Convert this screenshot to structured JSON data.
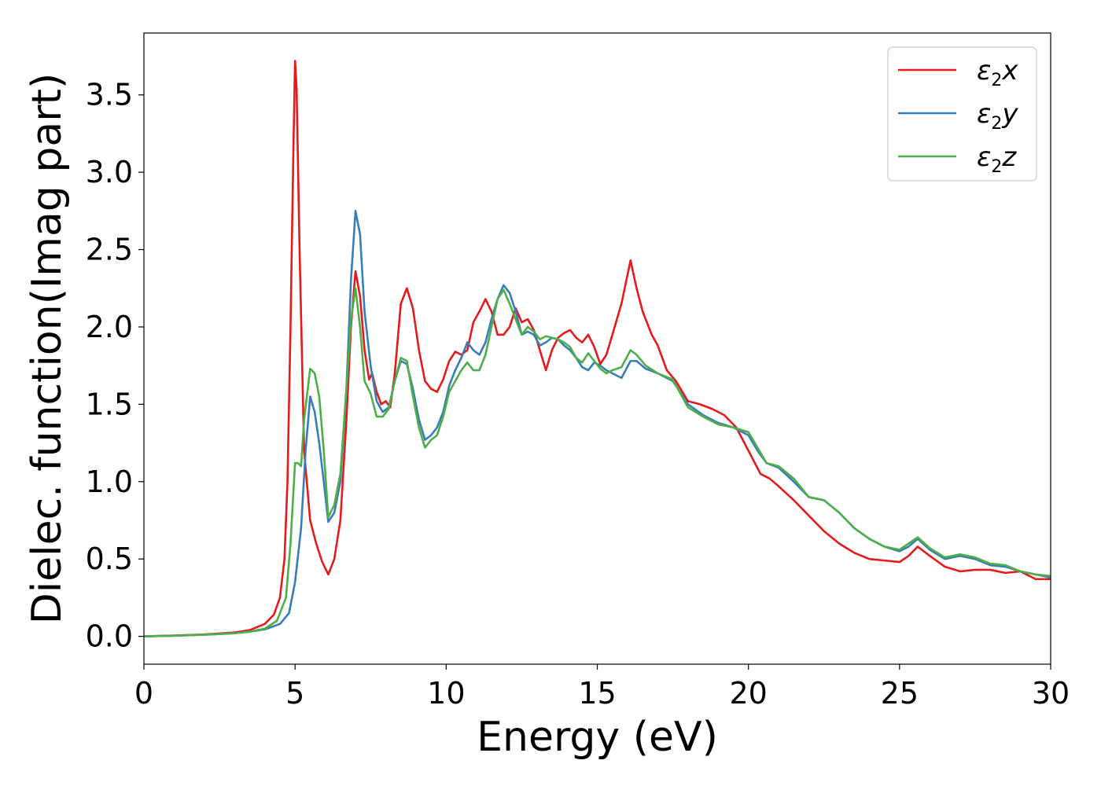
{
  "chart_data": {
    "type": "line",
    "xlabel": "Energy (eV)",
    "ylabel": "Dielec. function(Imag part)",
    "xlim": [
      0,
      30
    ],
    "ylim": [
      -0.18,
      3.9
    ],
    "xticks": [
      "0",
      "5",
      "10",
      "15",
      "20",
      "25",
      "30"
    ],
    "yticks": [
      "0.0",
      "0.5",
      "1.0",
      "1.5",
      "2.0",
      "2.5",
      "3.0",
      "3.5"
    ],
    "grid": false,
    "legend_position": "top-right",
    "series": [
      {
        "name": "ε2x",
        "legend_base": "ε",
        "legend_sub": "2",
        "legend_var": "x",
        "color": "#e41a1c",
        "points": [
          [
            0,
            0.0
          ],
          [
            1,
            0.005
          ],
          [
            2,
            0.012
          ],
          [
            3,
            0.025
          ],
          [
            3.5,
            0.04
          ],
          [
            4,
            0.08
          ],
          [
            4.3,
            0.14
          ],
          [
            4.5,
            0.25
          ],
          [
            4.65,
            0.5
          ],
          [
            4.75,
            1.0
          ],
          [
            4.85,
            2.0
          ],
          [
            4.95,
            3.2
          ],
          [
            5.0,
            3.72
          ],
          [
            5.05,
            3.55
          ],
          [
            5.15,
            2.5
          ],
          [
            5.3,
            1.2
          ],
          [
            5.5,
            0.75
          ],
          [
            5.7,
            0.6
          ],
          [
            5.9,
            0.48
          ],
          [
            6.1,
            0.4
          ],
          [
            6.3,
            0.5
          ],
          [
            6.5,
            0.75
          ],
          [
            6.7,
            1.4
          ],
          [
            6.85,
            2.0
          ],
          [
            7.0,
            2.36
          ],
          [
            7.15,
            2.2
          ],
          [
            7.3,
            1.85
          ],
          [
            7.45,
            1.66
          ],
          [
            7.55,
            1.7
          ],
          [
            7.7,
            1.58
          ],
          [
            7.85,
            1.5
          ],
          [
            8.0,
            1.52
          ],
          [
            8.15,
            1.48
          ],
          [
            8.3,
            1.7
          ],
          [
            8.5,
            2.15
          ],
          [
            8.7,
            2.25
          ],
          [
            8.9,
            2.12
          ],
          [
            9.1,
            1.85
          ],
          [
            9.3,
            1.65
          ],
          [
            9.5,
            1.6
          ],
          [
            9.7,
            1.58
          ],
          [
            9.9,
            1.66
          ],
          [
            10.1,
            1.78
          ],
          [
            10.3,
            1.84
          ],
          [
            10.5,
            1.82
          ],
          [
            10.7,
            1.85
          ],
          [
            10.9,
            2.03
          ],
          [
            11.1,
            2.1
          ],
          [
            11.3,
            2.18
          ],
          [
            11.5,
            2.1
          ],
          [
            11.7,
            1.95
          ],
          [
            11.9,
            1.95
          ],
          [
            12.1,
            2.0
          ],
          [
            12.3,
            2.12
          ],
          [
            12.5,
            2.03
          ],
          [
            12.7,
            2.05
          ],
          [
            12.9,
            1.98
          ],
          [
            13.1,
            1.85
          ],
          [
            13.3,
            1.72
          ],
          [
            13.5,
            1.85
          ],
          [
            13.7,
            1.93
          ],
          [
            13.9,
            1.96
          ],
          [
            14.1,
            1.98
          ],
          [
            14.3,
            1.93
          ],
          [
            14.5,
            1.9
          ],
          [
            14.7,
            1.95
          ],
          [
            14.9,
            1.87
          ],
          [
            15.1,
            1.76
          ],
          [
            15.3,
            1.82
          ],
          [
            15.5,
            1.95
          ],
          [
            15.8,
            2.15
          ],
          [
            16.1,
            2.43
          ],
          [
            16.3,
            2.25
          ],
          [
            16.5,
            2.1
          ],
          [
            16.8,
            1.95
          ],
          [
            17.0,
            1.88
          ],
          [
            17.3,
            1.72
          ],
          [
            17.6,
            1.65
          ],
          [
            18.0,
            1.52
          ],
          [
            18.4,
            1.5
          ],
          [
            18.8,
            1.47
          ],
          [
            19.2,
            1.43
          ],
          [
            19.6,
            1.35
          ],
          [
            20.0,
            1.2
          ],
          [
            20.4,
            1.05
          ],
          [
            20.7,
            1.02
          ],
          [
            21.0,
            0.97
          ],
          [
            21.5,
            0.88
          ],
          [
            22.0,
            0.78
          ],
          [
            22.5,
            0.68
          ],
          [
            23.0,
            0.6
          ],
          [
            23.5,
            0.54
          ],
          [
            24.0,
            0.5
          ],
          [
            24.5,
            0.49
          ],
          [
            25.0,
            0.48
          ],
          [
            25.3,
            0.52
          ],
          [
            25.6,
            0.58
          ],
          [
            26.0,
            0.52
          ],
          [
            26.5,
            0.45
          ],
          [
            27.0,
            0.42
          ],
          [
            27.5,
            0.43
          ],
          [
            28.0,
            0.43
          ],
          [
            28.5,
            0.41
          ],
          [
            29.0,
            0.42
          ],
          [
            29.5,
            0.37
          ],
          [
            30.0,
            0.37
          ]
        ]
      },
      {
        "name": "ε2y",
        "legend_base": "ε",
        "legend_sub": "2",
        "legend_var": "y",
        "color": "#377eb8",
        "points": [
          [
            0,
            0.0
          ],
          [
            1,
            0.004
          ],
          [
            2,
            0.01
          ],
          [
            3,
            0.02
          ],
          [
            3.5,
            0.03
          ],
          [
            4,
            0.045
          ],
          [
            4.5,
            0.08
          ],
          [
            4.8,
            0.15
          ],
          [
            5.0,
            0.35
          ],
          [
            5.2,
            0.7
          ],
          [
            5.35,
            1.2
          ],
          [
            5.5,
            1.55
          ],
          [
            5.65,
            1.45
          ],
          [
            5.8,
            1.25
          ],
          [
            5.95,
            1.0
          ],
          [
            6.1,
            0.74
          ],
          [
            6.3,
            0.8
          ],
          [
            6.5,
            1.0
          ],
          [
            6.7,
            1.6
          ],
          [
            6.85,
            2.3
          ],
          [
            7.0,
            2.75
          ],
          [
            7.15,
            2.6
          ],
          [
            7.3,
            2.1
          ],
          [
            7.5,
            1.75
          ],
          [
            7.7,
            1.52
          ],
          [
            7.9,
            1.45
          ],
          [
            8.1,
            1.48
          ],
          [
            8.3,
            1.65
          ],
          [
            8.5,
            1.78
          ],
          [
            8.7,
            1.76
          ],
          [
            8.9,
            1.6
          ],
          [
            9.1,
            1.4
          ],
          [
            9.3,
            1.27
          ],
          [
            9.5,
            1.3
          ],
          [
            9.7,
            1.35
          ],
          [
            9.9,
            1.45
          ],
          [
            10.1,
            1.62
          ],
          [
            10.3,
            1.72
          ],
          [
            10.5,
            1.8
          ],
          [
            10.7,
            1.9
          ],
          [
            10.9,
            1.85
          ],
          [
            11.1,
            1.82
          ],
          [
            11.3,
            1.9
          ],
          [
            11.5,
            2.05
          ],
          [
            11.7,
            2.18
          ],
          [
            11.9,
            2.27
          ],
          [
            12.1,
            2.22
          ],
          [
            12.3,
            2.1
          ],
          [
            12.5,
            1.95
          ],
          [
            12.7,
            1.97
          ],
          [
            12.9,
            1.95
          ],
          [
            13.1,
            1.88
          ],
          [
            13.3,
            1.9
          ],
          [
            13.5,
            1.93
          ],
          [
            13.7,
            1.92
          ],
          [
            13.9,
            1.88
          ],
          [
            14.1,
            1.85
          ],
          [
            14.3,
            1.8
          ],
          [
            14.5,
            1.74
          ],
          [
            14.7,
            1.72
          ],
          [
            14.9,
            1.77
          ],
          [
            15.1,
            1.75
          ],
          [
            15.3,
            1.72
          ],
          [
            15.5,
            1.7
          ],
          [
            15.8,
            1.67
          ],
          [
            16.1,
            1.78
          ],
          [
            16.3,
            1.78
          ],
          [
            16.6,
            1.73
          ],
          [
            17.0,
            1.7
          ],
          [
            17.5,
            1.65
          ],
          [
            18.0,
            1.5
          ],
          [
            18.5,
            1.43
          ],
          [
            19.0,
            1.38
          ],
          [
            19.5,
            1.35
          ],
          [
            20.0,
            1.3
          ],
          [
            20.3,
            1.2
          ],
          [
            20.6,
            1.12
          ],
          [
            21.0,
            1.09
          ],
          [
            21.5,
            1.0
          ],
          [
            22.0,
            0.9
          ],
          [
            22.5,
            0.88
          ],
          [
            23.0,
            0.8
          ],
          [
            23.5,
            0.7
          ],
          [
            24.0,
            0.63
          ],
          [
            24.5,
            0.58
          ],
          [
            25.0,
            0.55
          ],
          [
            25.3,
            0.58
          ],
          [
            25.6,
            0.63
          ],
          [
            26.0,
            0.56
          ],
          [
            26.5,
            0.5
          ],
          [
            27.0,
            0.52
          ],
          [
            27.5,
            0.5
          ],
          [
            28.0,
            0.46
          ],
          [
            28.5,
            0.45
          ],
          [
            29.0,
            0.42
          ],
          [
            29.5,
            0.4
          ],
          [
            30.0,
            0.38
          ]
        ]
      },
      {
        "name": "ε2z",
        "legend_base": "ε",
        "legend_sub": "2",
        "legend_var": "z",
        "color": "#4daf4a",
        "points": [
          [
            0,
            0.0
          ],
          [
            1,
            0.004
          ],
          [
            2,
            0.01
          ],
          [
            3,
            0.02
          ],
          [
            3.5,
            0.03
          ],
          [
            4,
            0.05
          ],
          [
            4.4,
            0.1
          ],
          [
            4.7,
            0.25
          ],
          [
            4.85,
            0.6
          ],
          [
            5.0,
            1.12
          ],
          [
            5.1,
            1.12
          ],
          [
            5.2,
            1.1
          ],
          [
            5.3,
            1.4
          ],
          [
            5.5,
            1.73
          ],
          [
            5.65,
            1.7
          ],
          [
            5.8,
            1.55
          ],
          [
            5.95,
            1.2
          ],
          [
            6.1,
            0.77
          ],
          [
            6.3,
            0.85
          ],
          [
            6.5,
            1.05
          ],
          [
            6.7,
            1.6
          ],
          [
            6.85,
            2.05
          ],
          [
            7.0,
            2.25
          ],
          [
            7.15,
            2.0
          ],
          [
            7.3,
            1.65
          ],
          [
            7.5,
            1.57
          ],
          [
            7.7,
            1.42
          ],
          [
            7.9,
            1.42
          ],
          [
            8.1,
            1.47
          ],
          [
            8.3,
            1.65
          ],
          [
            8.5,
            1.8
          ],
          [
            8.7,
            1.78
          ],
          [
            8.9,
            1.55
          ],
          [
            9.1,
            1.35
          ],
          [
            9.3,
            1.22
          ],
          [
            9.5,
            1.27
          ],
          [
            9.7,
            1.3
          ],
          [
            9.9,
            1.42
          ],
          [
            10.1,
            1.58
          ],
          [
            10.3,
            1.65
          ],
          [
            10.5,
            1.72
          ],
          [
            10.7,
            1.77
          ],
          [
            10.9,
            1.72
          ],
          [
            11.1,
            1.72
          ],
          [
            11.3,
            1.82
          ],
          [
            11.5,
            2.0
          ],
          [
            11.7,
            2.18
          ],
          [
            11.9,
            2.24
          ],
          [
            12.1,
            2.15
          ],
          [
            12.3,
            2.05
          ],
          [
            12.5,
            1.95
          ],
          [
            12.7,
            2.0
          ],
          [
            12.9,
            1.97
          ],
          [
            13.1,
            1.92
          ],
          [
            13.3,
            1.94
          ],
          [
            13.5,
            1.93
          ],
          [
            13.7,
            1.92
          ],
          [
            13.9,
            1.9
          ],
          [
            14.1,
            1.87
          ],
          [
            14.3,
            1.8
          ],
          [
            14.5,
            1.77
          ],
          [
            14.7,
            1.83
          ],
          [
            14.9,
            1.78
          ],
          [
            15.1,
            1.73
          ],
          [
            15.3,
            1.7
          ],
          [
            15.5,
            1.72
          ],
          [
            15.8,
            1.74
          ],
          [
            16.1,
            1.85
          ],
          [
            16.3,
            1.82
          ],
          [
            16.6,
            1.75
          ],
          [
            17.0,
            1.7
          ],
          [
            17.5,
            1.66
          ],
          [
            18.0,
            1.48
          ],
          [
            18.5,
            1.42
          ],
          [
            19.0,
            1.37
          ],
          [
            19.5,
            1.35
          ],
          [
            20.0,
            1.32
          ],
          [
            20.3,
            1.22
          ],
          [
            20.6,
            1.12
          ],
          [
            21.0,
            1.1
          ],
          [
            21.5,
            1.02
          ],
          [
            22.0,
            0.9
          ],
          [
            22.5,
            0.88
          ],
          [
            23.0,
            0.8
          ],
          [
            23.5,
            0.7
          ],
          [
            24.0,
            0.63
          ],
          [
            24.5,
            0.58
          ],
          [
            25.0,
            0.56
          ],
          [
            25.3,
            0.6
          ],
          [
            25.6,
            0.64
          ],
          [
            26.0,
            0.57
          ],
          [
            26.5,
            0.51
          ],
          [
            27.0,
            0.53
          ],
          [
            27.5,
            0.51
          ],
          [
            28.0,
            0.47
          ],
          [
            28.5,
            0.46
          ],
          [
            29.0,
            0.42
          ],
          [
            29.5,
            0.4
          ],
          [
            30.0,
            0.39
          ]
        ]
      }
    ]
  }
}
